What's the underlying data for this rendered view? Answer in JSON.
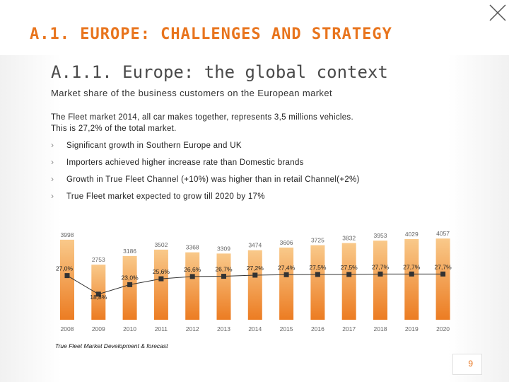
{
  "header": {
    "section_title": "A.1. EUROPE: CHALLENGES AND STRATEGY"
  },
  "slide": {
    "subtitle": "A.1.1. Europe: the global context",
    "subheading": "Market share of the business customers on the European market",
    "intro_line1": "The Fleet market 2014, all car makes together, represents 3,5 millions vehicles.",
    "intro_line2": "This is 27,2% of the total market.",
    "bullets": [
      "Significant growth in Southern Europe and UK",
      "Importers achieved higher increase rate than Domestic brands",
      "Growth in True Fleet Channel (+10%) was higher than in retail Channel(+2%)",
      "True Fleet market expected to grow till 2020 by 17%"
    ],
    "caption": "True Fleet Market Development & forecast",
    "page_number": "9"
  },
  "colors": {
    "accent": "#e8741d",
    "bar_top": "#f9c98a",
    "bar_bottom": "#ec7c22",
    "marker": "#333333"
  },
  "chart_data": {
    "type": "bar",
    "categories": [
      "2008",
      "2009",
      "2010",
      "2011",
      "2012",
      "2013",
      "2014",
      "2015",
      "2016",
      "2017",
      "2018",
      "2019",
      "2020"
    ],
    "series": [
      {
        "values": [
          3998,
          2753,
          3186,
          3502,
          3368,
          3309,
          3474,
          3606,
          3725,
          3832,
          3953,
          4029,
          4057
        ]
      },
      {
        "values": [
          27.0,
          18.8,
          23.0,
          25.6,
          26.6,
          26.7,
          27.2,
          27.4,
          27.5,
          27.5,
          27.7,
          27.7,
          27.7
        ]
      }
    ],
    "value_labels": [
      "3998",
      "2753",
      "3186",
      "3502",
      "3368",
      "3309",
      "3474",
      "3606",
      "3725",
      "3832",
      "3953",
      "4029",
      "4057"
    ],
    "share_labels": [
      "27,0%",
      "18,8%",
      "23,0%",
      "25,6%",
      "26,6%",
      "26,7%",
      "27,2%",
      "27,4%",
      "27,5%",
      "27,5%",
      "27,7%",
      "27,7%",
      "27,7%"
    ],
    "title": "",
    "xlabel": "",
    "ylabel": ""
  }
}
